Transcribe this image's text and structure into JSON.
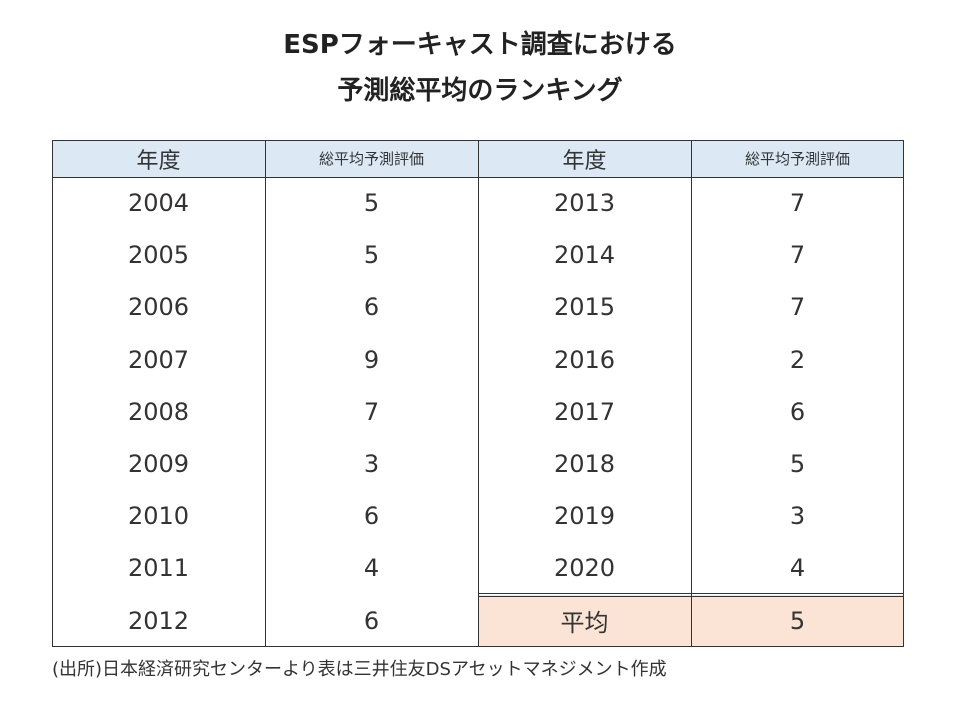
{
  "title": {
    "line1": "ESPフォーキャスト調査における",
    "line2": "予測総平均のランキング"
  },
  "colors": {
    "header_bg": "#dce9f5",
    "average_bg": "#fbe3d5",
    "grid": "#333333"
  },
  "chart_data": {
    "type": "table",
    "title": "ESPフォーキャスト調査における予測総平均のランキング",
    "columns": [
      "年度",
      "総平均予測評価",
      "年度",
      "総平均予測評価"
    ],
    "left": [
      {
        "year": "2004",
        "score": 5
      },
      {
        "year": "2005",
        "score": 5
      },
      {
        "year": "2006",
        "score": 6
      },
      {
        "year": "2007",
        "score": 9
      },
      {
        "year": "2008",
        "score": 7
      },
      {
        "year": "2009",
        "score": 3
      },
      {
        "year": "2010",
        "score": 6
      },
      {
        "year": "2011",
        "score": 4
      },
      {
        "year": "2012",
        "score": 6
      }
    ],
    "right": [
      {
        "year": "2013",
        "score": 7
      },
      {
        "year": "2014",
        "score": 7
      },
      {
        "year": "2015",
        "score": 7
      },
      {
        "year": "2016",
        "score": 2
      },
      {
        "year": "2017",
        "score": 6
      },
      {
        "year": "2018",
        "score": 5
      },
      {
        "year": "2019",
        "score": 3
      },
      {
        "year": "2020",
        "score": 4
      }
    ],
    "average": {
      "label": "平均",
      "score": 5
    }
  },
  "source": "(出所)日本経済研究センターより表は三井住友DSアセットマネジメント作成"
}
